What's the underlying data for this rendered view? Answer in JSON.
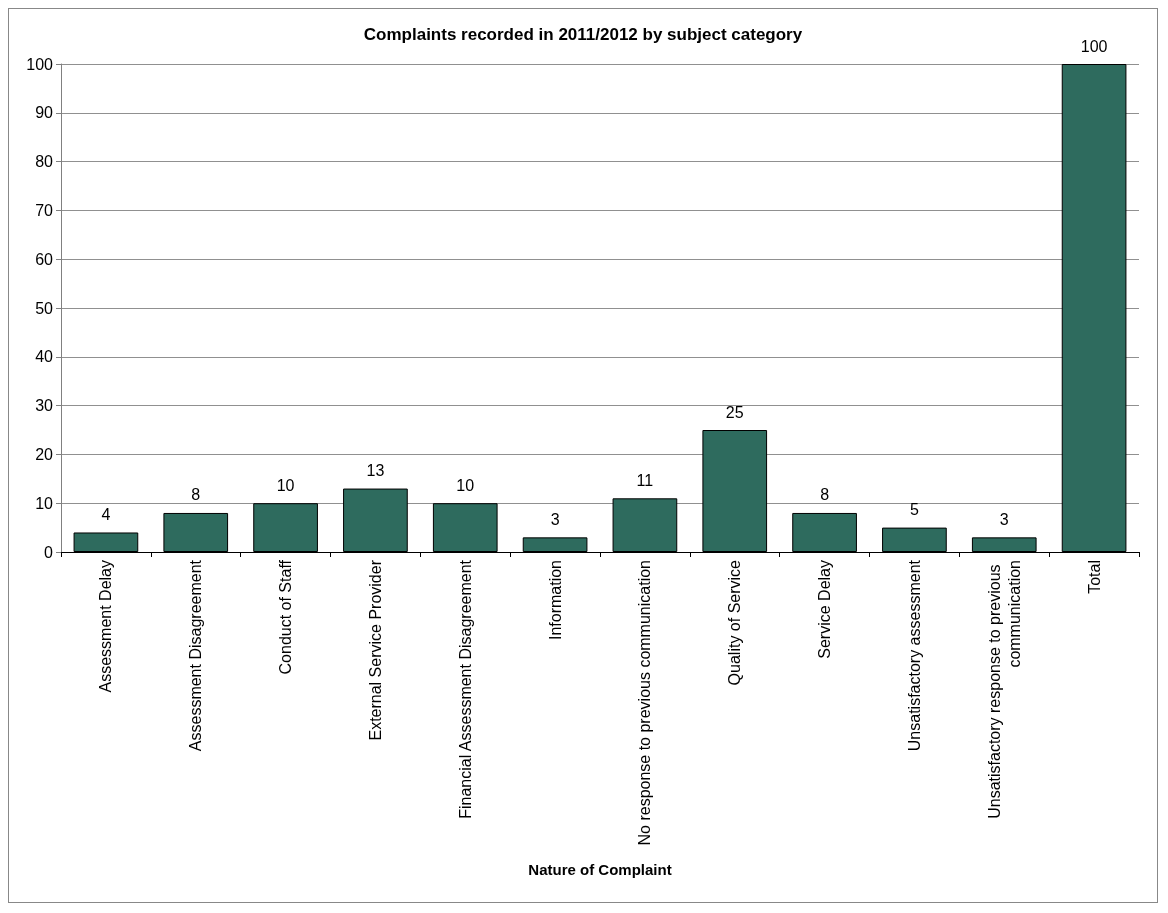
{
  "chart_data": {
    "type": "bar",
    "title": "Complaints recorded in 2011/2012 by subject category",
    "xlabel": "Nature of Complaint",
    "categories": [
      "Assessment Delay",
      "Assessment Disagreement",
      "Conduct of Staff",
      "External Service Provider",
      "Financial Assessment Disagreement",
      "Information",
      "No response to previous communication",
      "Quality of Service",
      "Service Delay",
      "Unsatisfactory assessment",
      "Unsatisfactory response to previous communication",
      "Total"
    ],
    "values": [
      4,
      8,
      10,
      13,
      10,
      3,
      11,
      25,
      8,
      5,
      3,
      100
    ],
    "color": "#2e6b5e",
    "ylim": [
      0,
      100
    ],
    "yticks": [
      0,
      10,
      20,
      30,
      40,
      50,
      60,
      70,
      80,
      90,
      100
    ],
    "grid": "y",
    "data_labels": true
  }
}
